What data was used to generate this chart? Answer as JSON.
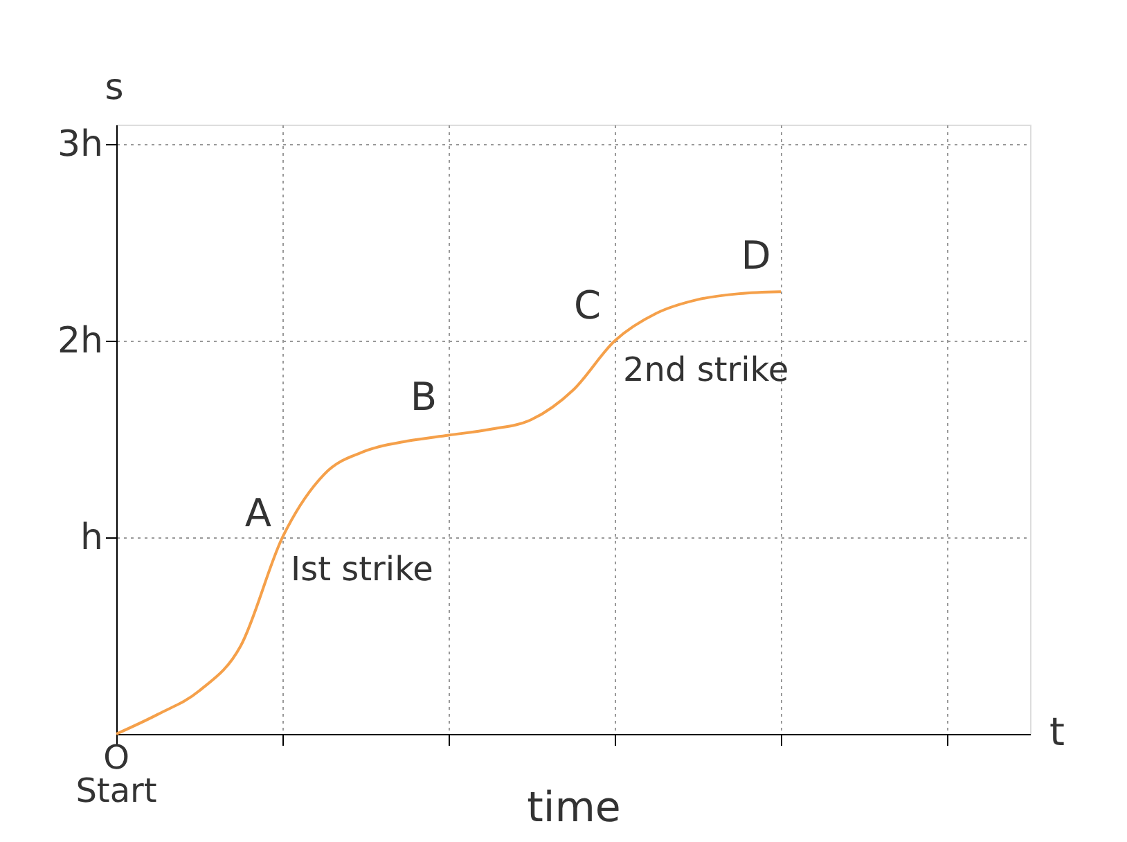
{
  "chart_data": {
    "type": "line",
    "xlabel": "time",
    "ylabel": "s",
    "categories": [
      null,
      null,
      null,
      null,
      null,
      null,
      null,
      null,
      null,
      null,
      null,
      null,
      null,
      null,
      null,
      null,
      null,
      null,
      null,
      null,
      null,
      null,
      null
    ],
    "series": [
      {
        "color": "#f5a04a",
        "values": [
          0,
          0.1,
          0.22,
          0.45,
          1,
          1.32,
          1.44,
          1.49,
          1.52,
          1.55,
          1.6,
          1.75,
          2,
          2.14,
          2.21,
          2.24,
          2.25,
          null,
          null,
          null,
          null,
          null,
          null
        ]
      }
    ],
    "ylim": [
      0,
      3.1
    ],
    "yticks": [
      {
        "value": 1,
        "label": "h"
      },
      {
        "value": 2,
        "label": "2h"
      },
      {
        "value": 3,
        "label": "3h"
      }
    ],
    "grid": true,
    "marker": "none",
    "line_style": "solid",
    "tick_labels": "y",
    "annotations": [
      "A",
      "Ist strike",
      "B",
      "C",
      "2nd strike",
      "D",
      "O",
      "Start",
      "t"
    ]
  }
}
